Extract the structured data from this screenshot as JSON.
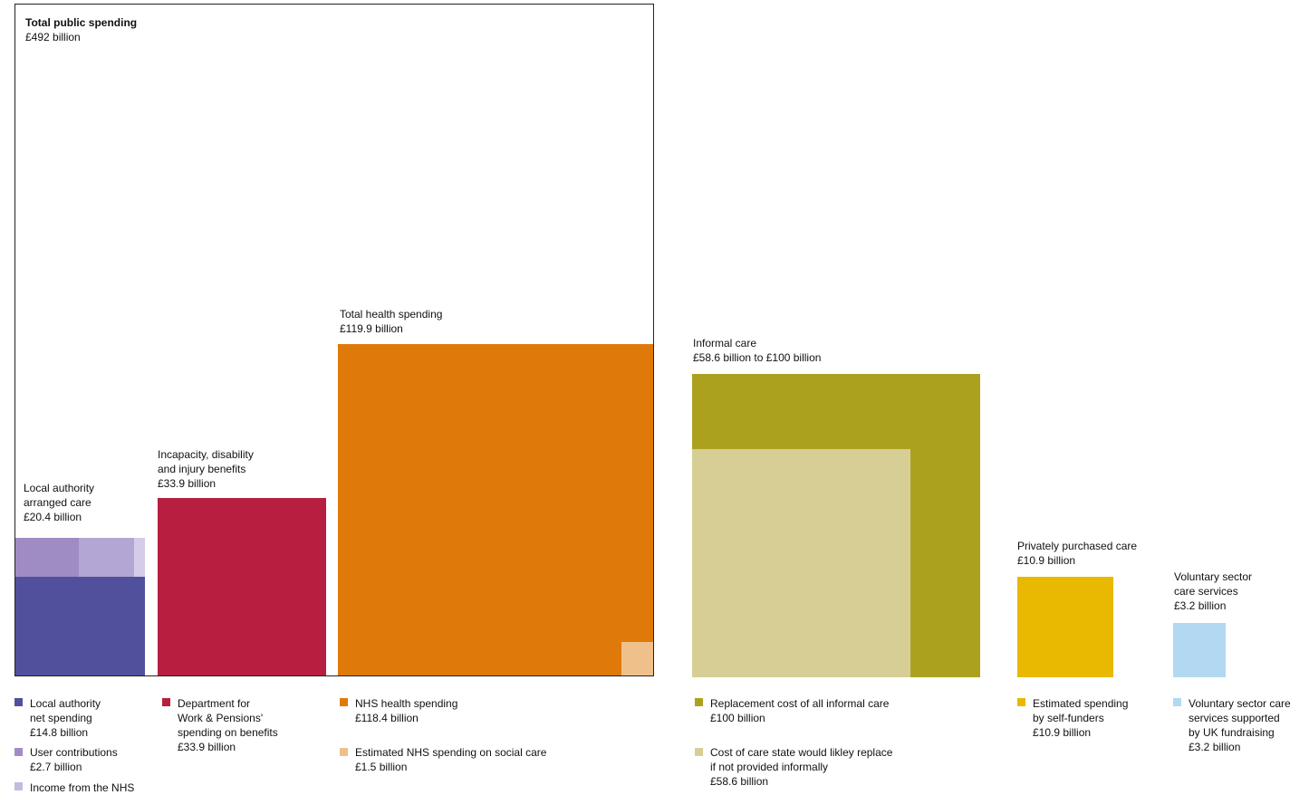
{
  "chart_data": {
    "type": "proportional-area",
    "unit": "£ billion",
    "groups": [
      {
        "label": "Total public spending",
        "value_text": "£492 billion",
        "value": 492
      },
      {
        "label": [
          "Local authority",
          "arranged care"
        ],
        "value_text": "£20.4 billion",
        "value": 20.4
      },
      {
        "label": [
          "Incapacity, disability",
          "and injury benefits"
        ],
        "value_text": "£33.9 billion",
        "value": 33.9
      },
      {
        "label": "Total health spending",
        "value_text": "£119.9 billion",
        "value": 119.9
      },
      {
        "label": "Informal care",
        "value_text": "£58.6 billion to £100 billion",
        "value_low": 58.6,
        "value_high": 100
      },
      {
        "label": "Privately purchased care",
        "value_text": "£10.9 billion",
        "value": 10.9
      },
      {
        "label": [
          "Voluntary sector",
          "care services"
        ],
        "value_text": "£3.2 billion",
        "value": 3.2
      }
    ],
    "legend": [
      {
        "label": [
          "Local authority",
          "net spending"
        ],
        "value_text": "£14.8 billion",
        "value": 14.8,
        "color": "#51509d"
      },
      {
        "label": [
          "User contributions"
        ],
        "value_text": "£2.7 billion",
        "value": 2.7,
        "color": "#a08cc5"
      },
      {
        "label": [
          "Income from the NHS"
        ],
        "value_text": "",
        "value": null,
        "color": "#c4bade"
      },
      {
        "label": [
          "Department for",
          "Work & Pensions'",
          "spending on benefits"
        ],
        "value_text": "£33.9 billion",
        "value": 33.9,
        "color": "#b81e40"
      },
      {
        "label": [
          "NHS health spending"
        ],
        "value_text": "£118.4 billion",
        "value": 118.4,
        "color": "#df7a0a"
      },
      {
        "label": [
          "Estimated NHS spending on social care"
        ],
        "value_text": "£1.5 billion",
        "value": 1.5,
        "color": "#f0c08a"
      },
      {
        "label": [
          "Replacement cost of all informal care"
        ],
        "value_text": "£100 billion",
        "value": 100,
        "color": "#aca11f"
      },
      {
        "label": [
          "Cost of care state would likley replace",
          "if not provided informally"
        ],
        "value_text": "£58.6 billion",
        "value": 58.6,
        "color": "#d7ce95"
      },
      {
        "label": [
          "Estimated spending",
          "by self-funders"
        ],
        "value_text": "£10.9 billion",
        "value": 10.9,
        "color": "#e8b900"
      },
      {
        "label": [
          "Voluntary sector care",
          "services supported",
          "by UK fundraising"
        ],
        "value_text": "£3.2 billion",
        "value": 3.2,
        "color": "#b3d9f2"
      }
    ]
  }
}
